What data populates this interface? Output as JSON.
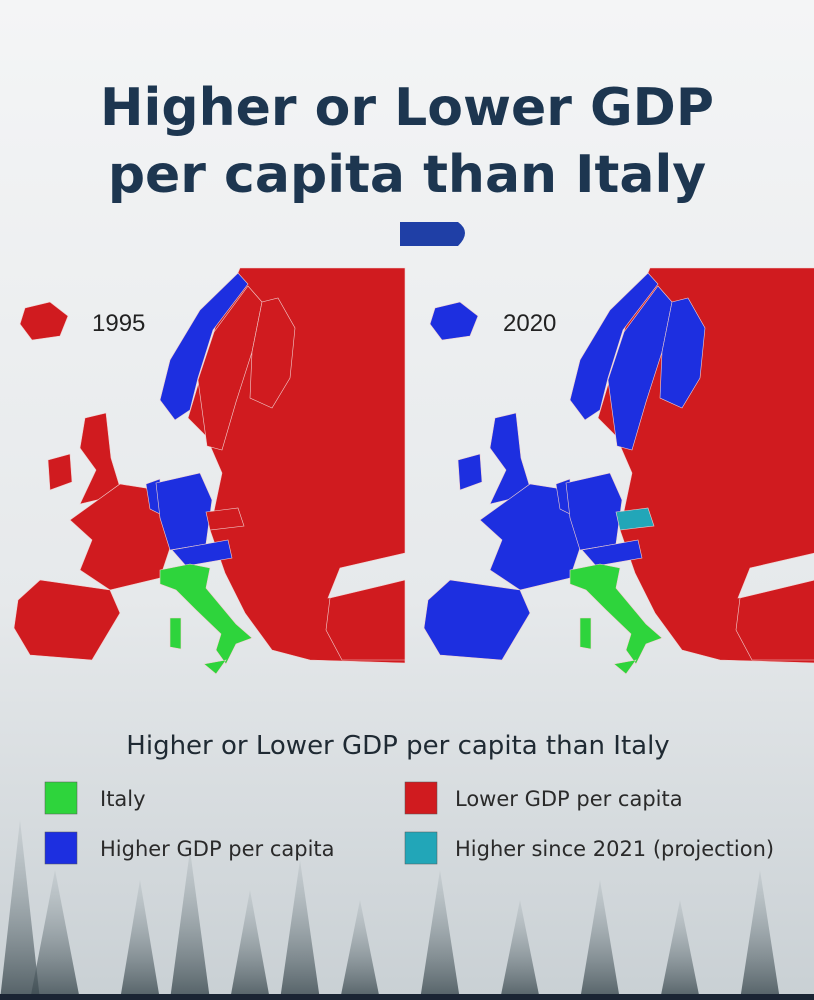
{
  "header": {
    "title_line1": "Higher or Lower GDP",
    "title_line2": "per capita than Italy"
  },
  "maps": [
    {
      "label": "1995"
    },
    {
      "label": "2020"
    }
  ],
  "legend": {
    "title": "Higher or Lower GDP per capita than Italy",
    "items": [
      {
        "label": "Italy",
        "color": "#2ed43c"
      },
      {
        "label": "Lower GDP per capita",
        "color": "#d01b1f"
      },
      {
        "label": "Higher GDP per capita",
        "color": "#1d2fe0"
      },
      {
        "label": "Higher since 2021 (projection)",
        "color": "#22a6b8"
      }
    ]
  }
}
